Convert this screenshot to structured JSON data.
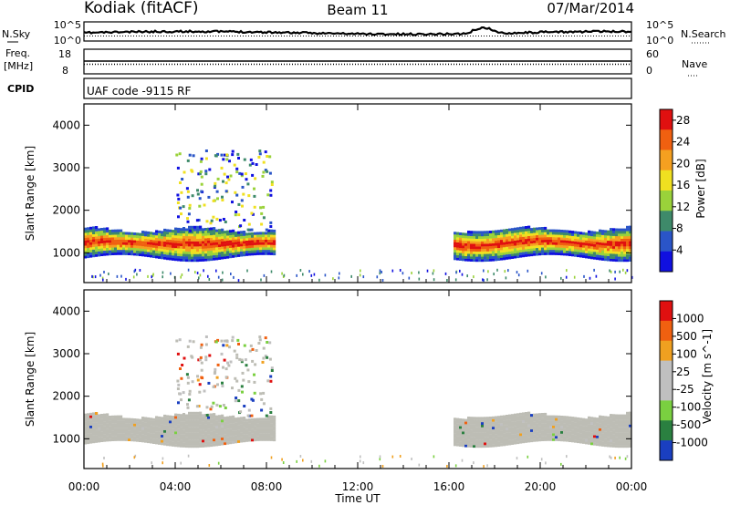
{
  "header": {
    "site": "Kodiak (fitACF)",
    "beam": "Beam 11",
    "date": "07/Mar/2014"
  },
  "noise_panel": {
    "left_label": "N.Sky",
    "right_label": "N.Search",
    "left_ticks": [
      "10^5",
      "10^0"
    ],
    "right_ticks": [
      "10^5",
      "10^0"
    ]
  },
  "freq_panel": {
    "left_label_line1": "Freq.",
    "left_label_line2": "[MHz]",
    "right_label": "Nave",
    "left_ticks": [
      "18",
      "8"
    ],
    "right_ticks": [
      "60",
      "0"
    ]
  },
  "cpid_panel": {
    "label": "CPID",
    "text": "UAF code -9115 RF"
  },
  "chart_data": [
    {
      "type": "heatmap",
      "name": "power",
      "ylabel": "Slant Range [km]",
      "yticks": [
        "1000",
        "2000",
        "3000",
        "4000"
      ],
      "ylim": [
        300,
        4500
      ],
      "colorbar_label": "Power [dB]",
      "colorbar_ticks": [
        "4",
        "8",
        "12",
        "16",
        "20",
        "24",
        "28"
      ],
      "colorbar_range": [
        0,
        30
      ],
      "colors": [
        "#1010e0",
        "#2a55c8",
        "#3e8a6a",
        "#9ad23a",
        "#f0e020",
        "#f5a020",
        "#f06010",
        "#e01010"
      ],
      "echo_regions_ut_hours": [
        [
          0,
          8.3
        ],
        [
          16.2,
          24
        ]
      ],
      "echo_range_km": [
        900,
        1600
      ],
      "peak_range_km": 1200
    },
    {
      "type": "heatmap",
      "name": "velocity",
      "ylabel": "Slant Range [km]",
      "yticks": [
        "1000",
        "2000",
        "3000",
        "4000"
      ],
      "ylim": [
        300,
        4500
      ],
      "colorbar_label": "Velocity [m s^-1]",
      "colorbar_ticks": [
        "1000",
        "500",
        "100",
        "25",
        "-25",
        "-100",
        "-500",
        "-1000"
      ],
      "colors": [
        "#1a3fc0",
        "#2a8040",
        "#7ad040",
        "#c0c0c0",
        "#c0c0c0",
        "#f0a020",
        "#f06010",
        "#e01010"
      ],
      "ground_scatter_color": "#bdbdb5"
    }
  ],
  "xaxis": {
    "ticks": [
      "00:00",
      "04:00",
      "08:00",
      "12:00",
      "16:00",
      "20:00",
      "00:00"
    ],
    "tick_hours": [
      0,
      4,
      8,
      12,
      16,
      20,
      24
    ],
    "label": "Time UT"
  }
}
